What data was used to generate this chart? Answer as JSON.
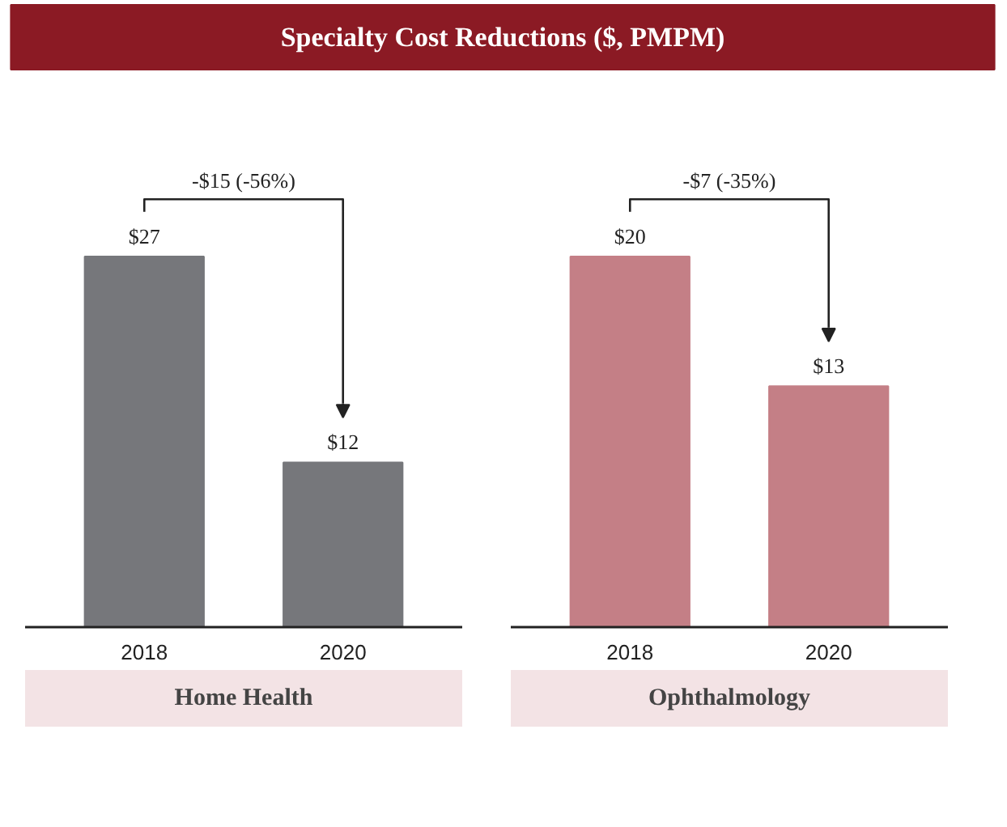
{
  "chart_data": [
    {
      "type": "bar",
      "title": "Specialty Cost Reductions ($, PMPM)",
      "xlabel": "Home Health",
      "categories": [
        "2018",
        "2020"
      ],
      "values": [
        27,
        12
      ],
      "color": "#76777b",
      "value_labels": [
        "$27",
        "$12"
      ],
      "annotations": [
        "-$15 (-56%)"
      ],
      "tick_labels": "x"
    },
    {
      "type": "bar",
      "xlabel": "Ophthalmology",
      "categories": [
        "2018",
        "2020"
      ],
      "values": [
        20,
        13
      ],
      "color": "#c47f86",
      "value_labels": [
        "$20",
        "$13"
      ],
      "annotations": [
        "-$7 (-35%)"
      ],
      "tick_labels": "x"
    }
  ]
}
